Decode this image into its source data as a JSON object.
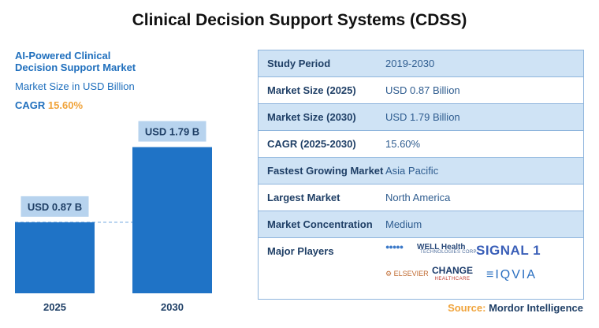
{
  "title": "Clinical Decision Support Systems (CDSS)",
  "left_panel": {
    "line1": "AI-Powered Clinical",
    "line2": "Decision Support Market",
    "unit_label": "Market Size in USD Billion",
    "cagr_label": "CAGR",
    "cagr_value": "15.60%"
  },
  "chart_data": {
    "type": "bar",
    "categories": [
      "2025",
      "2030"
    ],
    "values": [
      0.87,
      1.79
    ],
    "value_labels": [
      "USD 0.87 B",
      "USD 1.79 B"
    ],
    "ylabel": "Market Size in USD Billion",
    "ylim": [
      0,
      1.95
    ],
    "grid": false,
    "reference_line": 0.87,
    "colors": {
      "bar": "#1f73c6",
      "label_box": "#b7d3ee",
      "label_text": "#1f3f66",
      "ref_line": "#9ec4ea"
    }
  },
  "table": {
    "rows": [
      {
        "label": "Study Period",
        "value": "2019-2030"
      },
      {
        "label": "Market Size (2025)",
        "value": "USD 0.87 Billion"
      },
      {
        "label": "Market Size (2030)",
        "value": "USD 1.79 Billion"
      },
      {
        "label": "CAGR (2025-2030)",
        "value": "15.60%"
      },
      {
        "label": "Fastest Growing Market",
        "value": "Asia Pacific"
      },
      {
        "label": "Largest Market",
        "value": "North America"
      },
      {
        "label": "Market Concentration",
        "value": "Medium"
      }
    ],
    "players_label": "Major Players",
    "players": {
      "wellhealth": "WELL Health",
      "wellhealth_sub": "TECHNOLOGIES CORP",
      "signal": "SIGNAL 1",
      "elsevier": "ELSEVIER",
      "change": "CHANGE",
      "change_sub": "HEALTHCARE",
      "iqvia": "IQVIA"
    }
  },
  "source": {
    "prefix": "Source:",
    "org": "Mordor Intelligence"
  }
}
